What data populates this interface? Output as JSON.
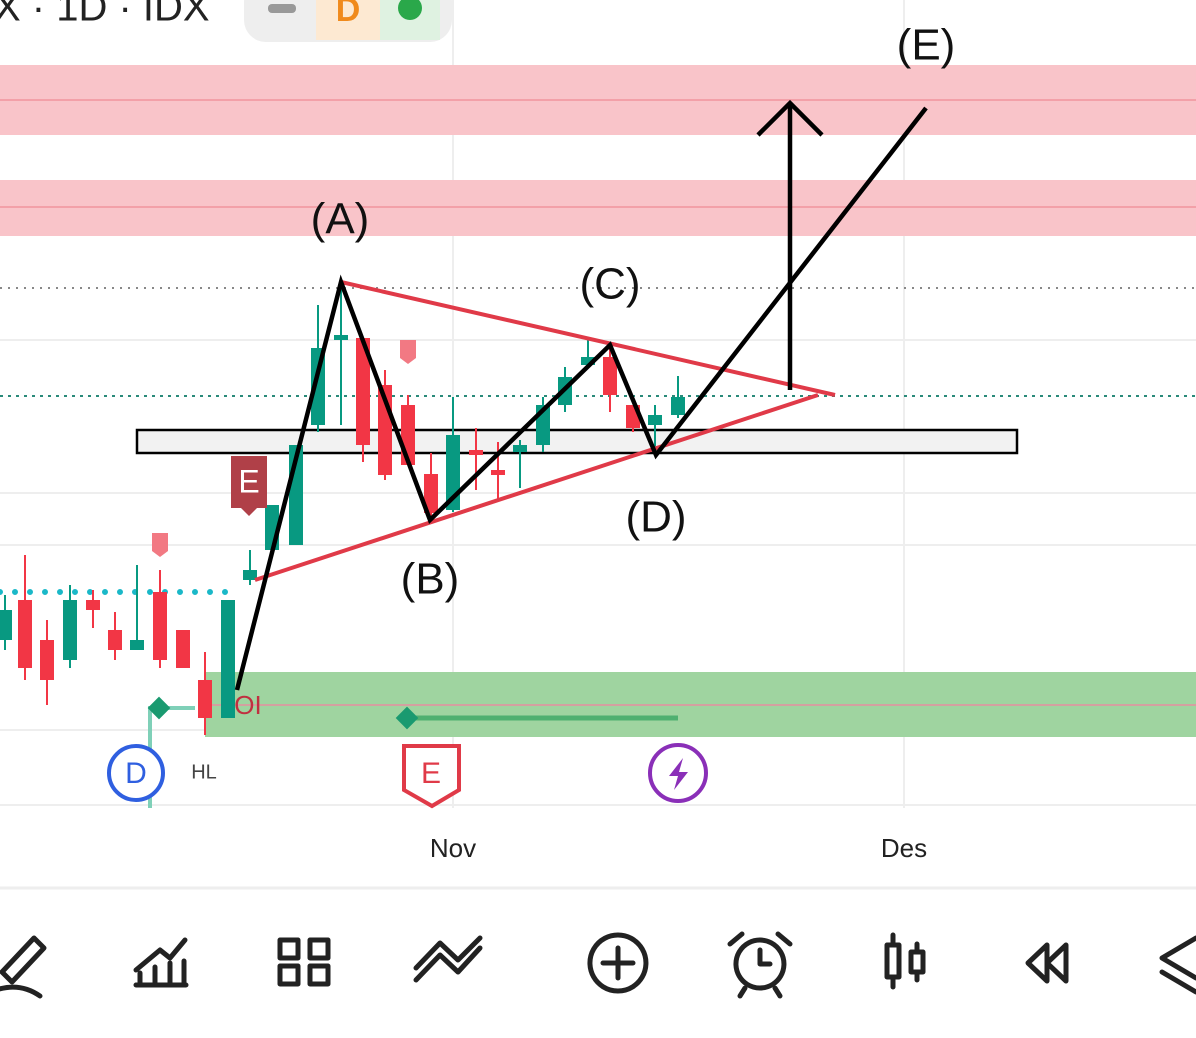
{
  "header": {
    "symbol": "X · 1D · IDX",
    "badge": "D"
  },
  "wave_labels": [
    "(A)",
    "(B)",
    "(C)",
    "(D)",
    "(E)"
  ],
  "markers": {
    "earnings_flag": "E",
    "oi": "OI",
    "hl": "HL",
    "dividend": "D",
    "earnings": "E"
  },
  "x_axis": [
    "Nov",
    "Des"
  ]
}
